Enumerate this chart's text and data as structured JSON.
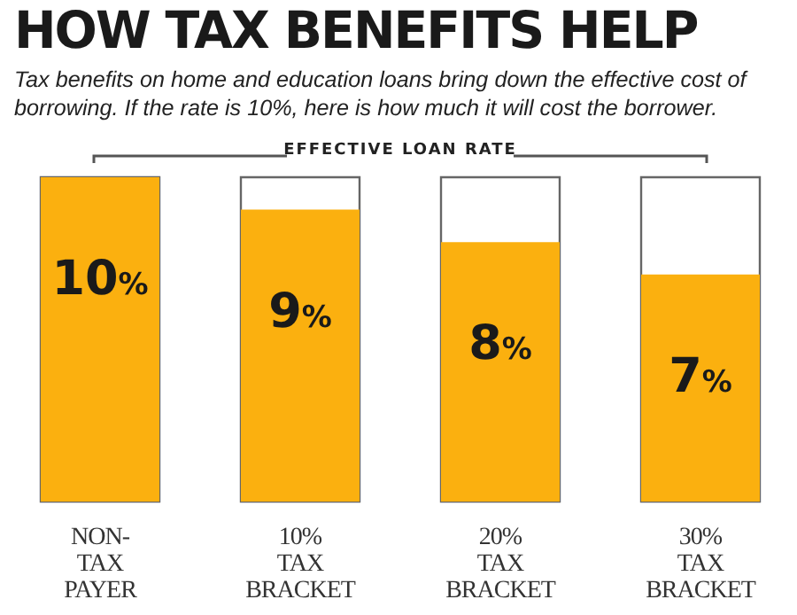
{
  "chart_data": {
    "type": "bar",
    "title": "HOW TAX BENEFITS HELP",
    "subtitle": "Tax benefits on home and education loans bring down the effective cost of borrowing. If the rate is 10%, here is how much it will cost the borrower.",
    "annotations": [
      "EFFECTIVE LOAN RATE"
    ],
    "categories": [
      "NON-\nTAX\nPAYER",
      "10%\nTAX\nBRACKET",
      "20%\nTAX\nBRACKET",
      "30%\nTAX\nBRACKET"
    ],
    "values": [
      10,
      9,
      8,
      7
    ],
    "value_labels": [
      "10%",
      "9%",
      "8%",
      "7%"
    ],
    "color": "#fbb00f",
    "ylim": [
      0,
      10
    ],
    "grid": false,
    "legend": false
  }
}
